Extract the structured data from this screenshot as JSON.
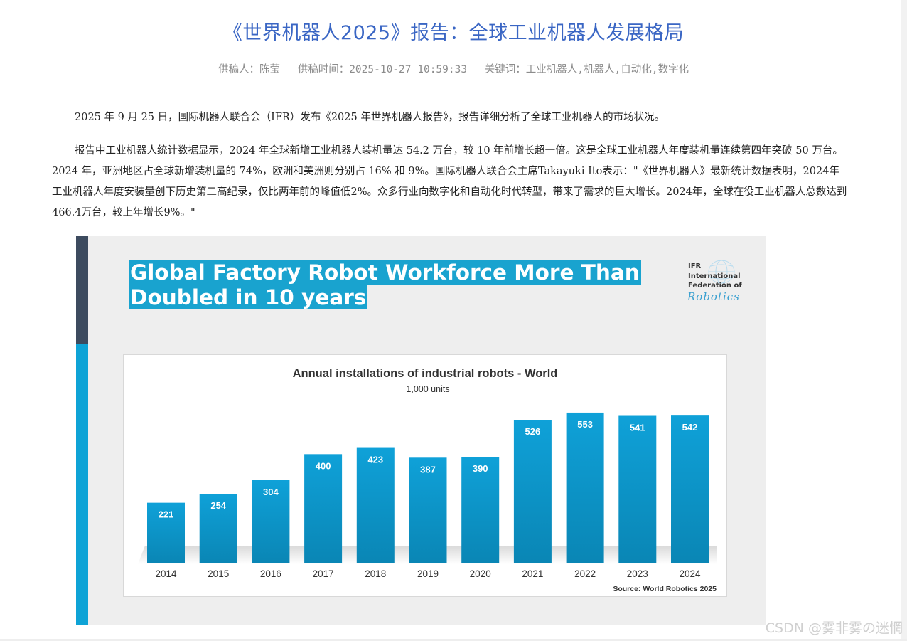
{
  "article": {
    "title": "《世界机器人2025》报告：全球工业机器人发展格局",
    "meta": {
      "author": "供稿人：陈莹",
      "time": "供稿时间：2025-10-27 10:59:33",
      "keywords": "关键词：工业机器人,机器人,自动化,数字化"
    },
    "paragraphs": [
      "2025 年 9 月 25 日，国际机器人联合会（IFR）发布《2025 年世界机器人报告》，报告详细分析了全球工业机器人的市场状况。",
      "报告中工业机器人统计数据显示，2024 年全球新增工业机器人装机量达 54.2 万台，较 10 年前增长超一倍。这是全球工业机器人年度装机量连续第四年突破 50 万台。2024 年，亚洲地区占全球新增装机量的 74%，欧洲和美洲则分别占 16% 和 9%。国际机器人联合会主席Takayuki Ito表示：\"《世界机器人》最新统计数据表明，2024年工业机器人年度安装量创下历史第二高纪录，仅比两年前的峰值低2%。众多行业向数字化和自动化时代转型，带来了需求的巨大增长。2024年，全球在役工业机器人总数达到466.4万台，较上年增长9%。\""
    ]
  },
  "figure": {
    "headline_line1": "Global Factory Robot Workforce More Than",
    "headline_line2": "Doubled in 10 years",
    "logo_lines": [
      "IFR",
      "International",
      "Federation of"
    ],
    "logo_script": "Robotics",
    "accent_color": "#19a3cf",
    "dark_color": "#3d4b5f"
  },
  "chart_data": {
    "type": "bar",
    "title": "Annual installations of industrial robots - World",
    "subtitle": "1,000 units",
    "categories": [
      "2014",
      "2015",
      "2016",
      "2017",
      "2018",
      "2019",
      "2020",
      "2021",
      "2022",
      "2023",
      "2024"
    ],
    "values": [
      221,
      254,
      304,
      400,
      423,
      387,
      390,
      526,
      553,
      541,
      542
    ],
    "ylim": [
      0,
      600
    ],
    "grid": false,
    "source": "Source: World Robotics 2025",
    "bar_color": "#1196c9"
  },
  "watermark": "CSDN @雾非雾の迷惘"
}
